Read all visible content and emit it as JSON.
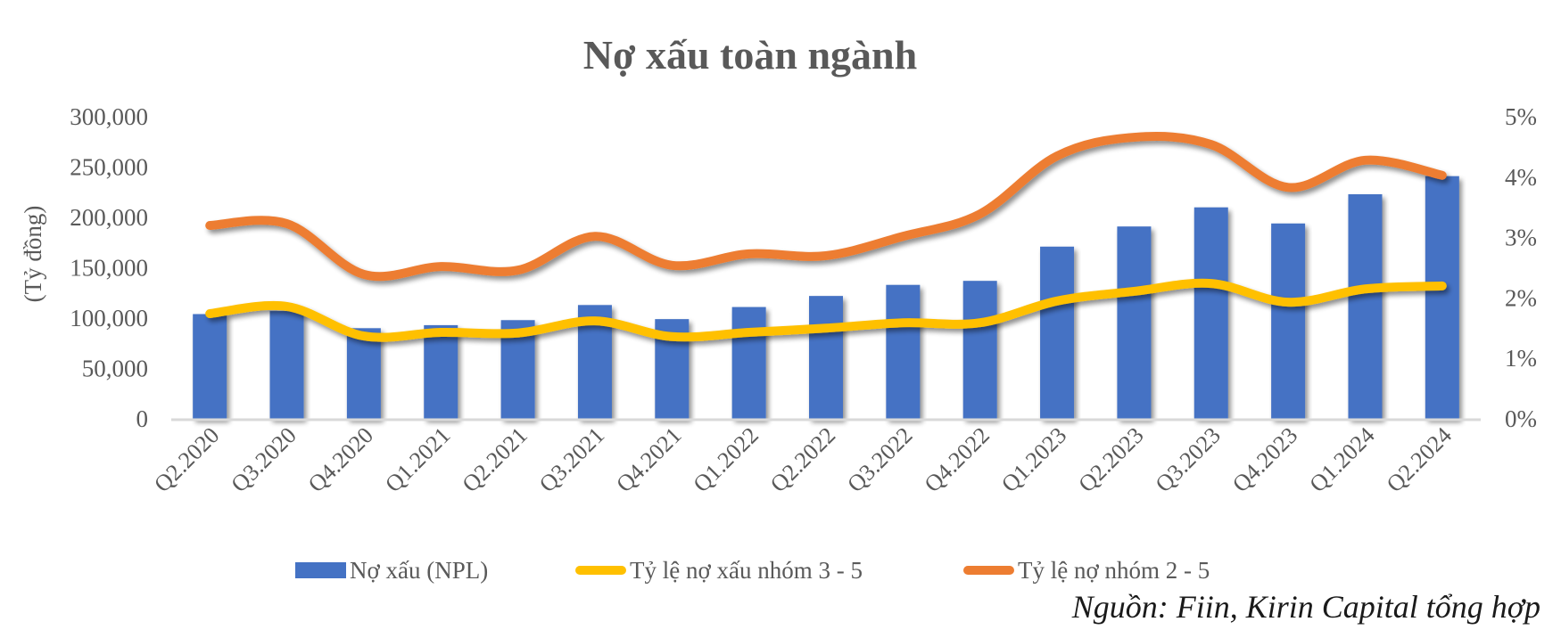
{
  "chart_data": {
    "type": "bar+line",
    "title": "Nợ xấu toàn ngành",
    "xlabel": "",
    "ylabel": "(Tỷ đồng)",
    "y2label": "",
    "categories": [
      "Q2.2020",
      "Q3.2020",
      "Q4.2020",
      "Q1.2021",
      "Q2.2021",
      "Q3.2021",
      "Q4.2021",
      "Q1.2022",
      "Q2.2022",
      "Q3.2022",
      "Q4.2022",
      "Q1.2023",
      "Q2.2023",
      "Q3.2023",
      "Q4.2023",
      "Q1.2024",
      "Q2.2024"
    ],
    "series": [
      {
        "name": "Nợ xấu (NPL)",
        "type": "bar",
        "axis": "left",
        "color": "#4472C4",
        "values": [
          104000,
          107000,
          90000,
          93000,
          98000,
          113000,
          99000,
          111000,
          122000,
          133000,
          137000,
          171000,
          191000,
          210000,
          194000,
          223000,
          241000
        ]
      },
      {
        "name": "Tỷ lệ nợ xấu nhóm 3 - 5",
        "type": "line",
        "axis": "right",
        "color": "#FFC000",
        "values": [
          1.74,
          1.86,
          1.37,
          1.43,
          1.42,
          1.62,
          1.36,
          1.43,
          1.5,
          1.59,
          1.59,
          1.95,
          2.11,
          2.24,
          1.93,
          2.15,
          2.2
        ]
      },
      {
        "name": "Tỷ lệ nợ nhóm 2 - 5",
        "type": "line",
        "axis": "right",
        "color": "#ED7D31",
        "values": [
          3.2,
          3.23,
          2.39,
          2.52,
          2.46,
          3.02,
          2.54,
          2.73,
          2.7,
          3.02,
          3.39,
          4.35,
          4.66,
          4.54,
          3.83,
          4.28,
          4.03
        ]
      }
    ],
    "ylim": [
      0,
      300000
    ],
    "y2lim": [
      0,
      5
    ],
    "yticks": [
      "0",
      "50,000",
      "100,000",
      "150,000",
      "200,000",
      "250,000",
      "300,000"
    ],
    "y2ticks": [
      "0%",
      "1%",
      "2%",
      "3%",
      "4%",
      "5%"
    ],
    "grid": false,
    "legend_position": "bottom",
    "source_note": "Nguồn: Fiin, Kirin Capital tổng hợp"
  }
}
